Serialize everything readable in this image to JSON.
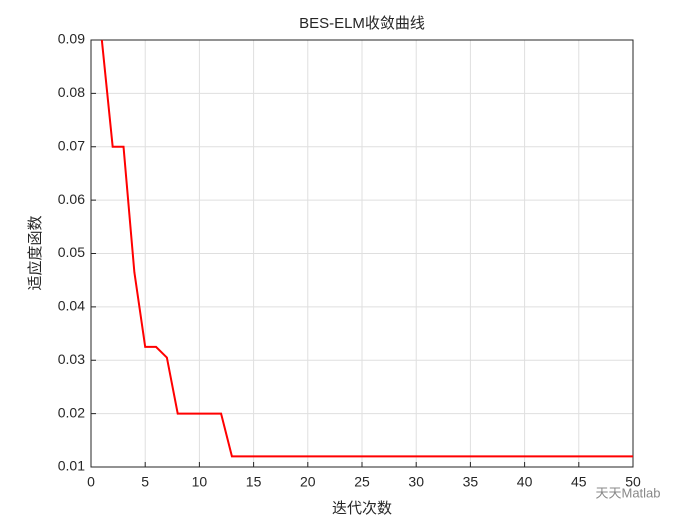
{
  "chart_data": {
    "type": "line",
    "title": "BES-ELM收敛曲线",
    "xlabel": "迭代次数",
    "ylabel": "适应度函数",
    "x": [
      1,
      2,
      3,
      4,
      5,
      6,
      7,
      8,
      9,
      10,
      11,
      12,
      13,
      14,
      15,
      16,
      17,
      18,
      19,
      20,
      21,
      22,
      23,
      24,
      25,
      26,
      27,
      28,
      29,
      30,
      31,
      32,
      33,
      34,
      35,
      36,
      37,
      38,
      39,
      40,
      41,
      42,
      43,
      44,
      45,
      46,
      47,
      48,
      49,
      50
    ],
    "series": [
      {
        "color": "#ff0000",
        "values": [
          0.09,
          0.07,
          0.07,
          0.0465,
          0.0325,
          0.0325,
          0.0305,
          0.02,
          0.02,
          0.02,
          0.02,
          0.02,
          0.012,
          0.012,
          0.012,
          0.012,
          0.012,
          0.012,
          0.012,
          0.012,
          0.012,
          0.012,
          0.012,
          0.012,
          0.012,
          0.012,
          0.012,
          0.012,
          0.012,
          0.012,
          0.012,
          0.012,
          0.012,
          0.012,
          0.012,
          0.012,
          0.012,
          0.012,
          0.012,
          0.012,
          0.012,
          0.012,
          0.012,
          0.012,
          0.012,
          0.012,
          0.012,
          0.012,
          0.012,
          0.012
        ]
      }
    ],
    "xlim": [
      0,
      50
    ],
    "xticks": [
      0,
      5,
      10,
      15,
      20,
      25,
      30,
      35,
      40,
      45,
      50
    ],
    "ylim": [
      0.01,
      0.09
    ],
    "yticks": [
      0.01,
      0.02,
      0.03,
      0.04,
      0.05,
      0.06,
      0.07,
      0.08,
      0.09
    ],
    "grid": true,
    "watermark": "天天Matlab"
  }
}
